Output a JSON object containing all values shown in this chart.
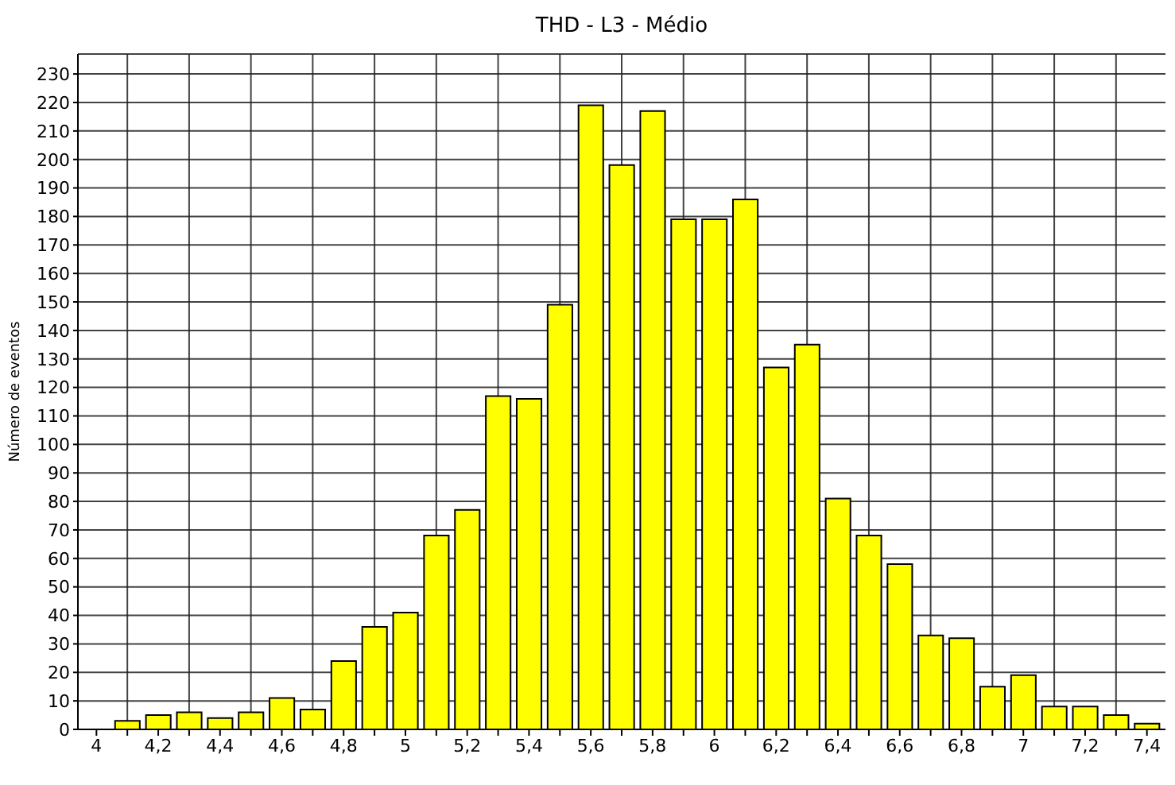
{
  "chart_data": {
    "type": "histogram",
    "title": "THD  -  L3  -  Médio",
    "ylabel": "Número de eventos",
    "bins": [
      4.05,
      4.15,
      4.25,
      4.35,
      4.45,
      4.55,
      4.65,
      4.75,
      4.85,
      4.95,
      5.05,
      5.15,
      5.25,
      5.35,
      5.45,
      5.55,
      5.65,
      5.75,
      5.85,
      5.95,
      6.05,
      6.15,
      6.25,
      6.35,
      6.45,
      6.55,
      6.65,
      6.75,
      6.85,
      6.95,
      7.05,
      7.15,
      7.25,
      7.35,
      7.45
    ],
    "values": [
      3,
      5,
      6,
      4,
      6,
      11,
      7,
      24,
      36,
      41,
      68,
      77,
      117,
      116,
      149,
      219,
      198,
      217,
      179,
      179,
      186,
      127,
      135,
      81,
      68,
      58,
      33,
      32,
      15,
      19,
      8,
      8,
      5,
      2
    ],
    "color": "#ffff00",
    "xlim": [
      3.94,
      7.46
    ],
    "xticks": [
      {
        "value": 4,
        "label": "4"
      },
      {
        "value": 4.1,
        "label": null
      },
      {
        "value": 4.2,
        "label": "4,2"
      },
      {
        "value": 4.3,
        "label": null
      },
      {
        "value": 4.4,
        "label": "4,4"
      },
      {
        "value": 4.5,
        "label": null
      },
      {
        "value": 4.6,
        "label": "4,6"
      },
      {
        "value": 4.7,
        "label": null
      },
      {
        "value": 4.8,
        "label": "4,8"
      },
      {
        "value": 4.9,
        "label": null
      },
      {
        "value": 5,
        "label": "5"
      },
      {
        "value": 5.1,
        "label": null
      },
      {
        "value": 5.2,
        "label": "5,2"
      },
      {
        "value": 5.3,
        "label": null
      },
      {
        "value": 5.4,
        "label": "5,4"
      },
      {
        "value": 5.5,
        "label": null
      },
      {
        "value": 5.6,
        "label": "5,6"
      },
      {
        "value": 5.7,
        "label": null
      },
      {
        "value": 5.8,
        "label": "5,8"
      },
      {
        "value": 5.9,
        "label": null
      },
      {
        "value": 6,
        "label": "6"
      },
      {
        "value": 6.1,
        "label": null
      },
      {
        "value": 6.2,
        "label": "6,2"
      },
      {
        "value": 6.3,
        "label": null
      },
      {
        "value": 6.4,
        "label": "6,4"
      },
      {
        "value": 6.5,
        "label": null
      },
      {
        "value": 6.6,
        "label": "6,6"
      },
      {
        "value": 6.7,
        "label": null
      },
      {
        "value": 6.8,
        "label": "6,8"
      },
      {
        "value": 6.9,
        "label": null
      },
      {
        "value": 7,
        "label": "7"
      },
      {
        "value": 7.1,
        "label": null
      },
      {
        "value": 7.2,
        "label": "7,2"
      },
      {
        "value": 7.3,
        "label": null
      },
      {
        "value": 7.4,
        "label": "7,4"
      }
    ],
    "ylim": [
      0,
      237
    ],
    "yticks": [
      0,
      10,
      20,
      30,
      40,
      50,
      60,
      70,
      80,
      90,
      100,
      110,
      120,
      130,
      140,
      150,
      160,
      170,
      180,
      190,
      200,
      210,
      220,
      230
    ],
    "grid": true
  }
}
